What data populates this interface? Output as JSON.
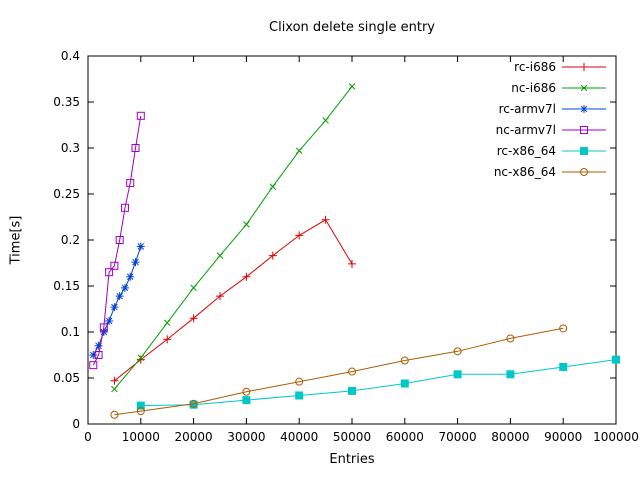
{
  "chart_data": {
    "type": "line",
    "title": "Clixon delete single entry",
    "xlabel": "Entries",
    "ylabel": "Time[s]",
    "xlim": [
      0,
      100000
    ],
    "ylim": [
      0,
      0.4
    ],
    "grid": false,
    "legend_position": "inside top-right",
    "xticks": {
      "values": [
        0,
        10000,
        20000,
        30000,
        40000,
        50000,
        60000,
        70000,
        80000,
        90000,
        100000
      ],
      "labels": [
        "0",
        "10000",
        "20000",
        "30000",
        "40000",
        "50000",
        "60000",
        "70000",
        "80000",
        "90000",
        "100000"
      ]
    },
    "yticks": {
      "values": [
        0,
        0.05,
        0.1,
        0.15,
        0.2,
        0.25,
        0.3,
        0.35,
        0.4
      ],
      "labels": [
        "0",
        "0.05",
        "0.1",
        "0.15",
        "0.2",
        "0.25",
        "0.3",
        "0.35",
        "0.4"
      ]
    },
    "series": [
      {
        "name": "rc-i686",
        "color": "#e00000",
        "marker": "plus",
        "x": [
          5000,
          10000,
          15000,
          20000,
          25000,
          30000,
          35000,
          40000,
          45000,
          50000
        ],
        "y": [
          0.047,
          0.07,
          0.092,
          0.115,
          0.139,
          0.16,
          0.183,
          0.205,
          0.222,
          0.174
        ]
      },
      {
        "name": "nc-i686",
        "color": "#00a000",
        "marker": "cross",
        "x": [
          5000,
          10000,
          15000,
          20000,
          25000,
          30000,
          35000,
          40000,
          45000,
          50000
        ],
        "y": [
          0.038,
          0.072,
          0.11,
          0.148,
          0.183,
          0.217,
          0.258,
          0.297,
          0.33,
          0.367
        ]
      },
      {
        "name": "rc-armv7l",
        "color": "#0044cc",
        "marker": "asterisk",
        "x": [
          1000,
          2000,
          3000,
          4000,
          5000,
          6000,
          7000,
          8000,
          9000,
          10000
        ],
        "y": [
          0.075,
          0.085,
          0.1,
          0.112,
          0.127,
          0.139,
          0.148,
          0.16,
          0.176,
          0.193
        ]
      },
      {
        "name": "nc-armv7l",
        "color": "#a000c8",
        "marker": "square-open",
        "x": [
          1000,
          2000,
          3000,
          4000,
          5000,
          6000,
          7000,
          8000,
          9000,
          10000
        ],
        "y": [
          0.064,
          0.075,
          0.105,
          0.165,
          0.172,
          0.2,
          0.235,
          0.262,
          0.3,
          0.335
        ]
      },
      {
        "name": "rc-x86_64",
        "color": "#00c8c8",
        "marker": "square-filled",
        "x": [
          10000,
          20000,
          30000,
          40000,
          50000,
          60000,
          70000,
          80000,
          90000,
          100000
        ],
        "y": [
          0.02,
          0.021,
          0.026,
          0.031,
          0.036,
          0.044,
          0.054,
          0.054,
          0.062,
          0.07
        ]
      },
      {
        "name": "nc-x86_64",
        "color": "#b05a00",
        "marker": "circle-open",
        "x": [
          5000,
          10000,
          20000,
          30000,
          40000,
          50000,
          60000,
          70000,
          80000,
          90000
        ],
        "y": [
          0.01,
          0.014,
          0.022,
          0.035,
          0.046,
          0.057,
          0.069,
          0.079,
          0.093,
          0.104
        ]
      }
    ]
  }
}
